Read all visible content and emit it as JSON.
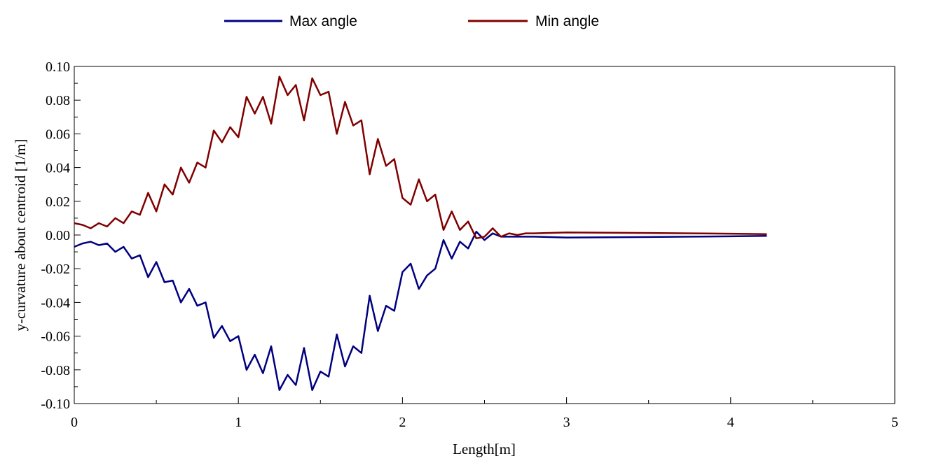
{
  "chart_data": {
    "type": "line",
    "xlabel": "Length[m]",
    "ylabel": "y-curvature about centroid [1/m]",
    "xlim": [
      0,
      5
    ],
    "ylim": [
      -0.1,
      0.1
    ],
    "x_ticks": [
      "0",
      "1",
      "2",
      "3",
      "4",
      "5"
    ],
    "y_ticks": [
      "0.10",
      "0.08",
      "0.06",
      "0.04",
      "0.02",
      "0.00",
      "-0.02",
      "-0.04",
      "-0.06",
      "-0.08",
      "-0.10"
    ],
    "grid": false,
    "legend_position": "top",
    "series": [
      {
        "name": "Max angle",
        "color": "#000080",
        "x": [
          0,
          0.05,
          0.1,
          0.15,
          0.2,
          0.25,
          0.3,
          0.35,
          0.4,
          0.45,
          0.5,
          0.55,
          0.6,
          0.65,
          0.7,
          0.75,
          0.8,
          0.85,
          0.9,
          0.95,
          1.0,
          1.05,
          1.1,
          1.15,
          1.2,
          1.25,
          1.3,
          1.35,
          1.4,
          1.45,
          1.5,
          1.55,
          1.6,
          1.65,
          1.7,
          1.75,
          1.8,
          1.85,
          1.9,
          1.95,
          2.0,
          2.05,
          2.1,
          2.15,
          2.2,
          2.25,
          2.3,
          2.35,
          2.4,
          2.45,
          2.5,
          2.55,
          2.6,
          2.65,
          2.7,
          2.75,
          2.8,
          3.0,
          3.5,
          4.0,
          4.22
        ],
        "y": [
          -0.007,
          -0.005,
          -0.004,
          -0.006,
          -0.005,
          -0.01,
          -0.007,
          -0.014,
          -0.012,
          -0.025,
          -0.016,
          -0.028,
          -0.027,
          -0.04,
          -0.032,
          -0.042,
          -0.04,
          -0.061,
          -0.054,
          -0.063,
          -0.06,
          -0.08,
          -0.071,
          -0.082,
          -0.066,
          -0.092,
          -0.083,
          -0.089,
          -0.067,
          -0.092,
          -0.081,
          -0.084,
          -0.059,
          -0.078,
          -0.066,
          -0.07,
          -0.036,
          -0.057,
          -0.042,
          -0.045,
          -0.022,
          -0.017,
          -0.032,
          -0.024,
          -0.02,
          -0.003,
          -0.014,
          -0.004,
          -0.008,
          0.002,
          -0.003,
          0.001,
          -0.001,
          -0.001,
          -0.001,
          -0.001,
          -0.001,
          -0.0015,
          -0.0012,
          -0.0008,
          -0.0005
        ]
      },
      {
        "name": "Min angle",
        "color": "#800000",
        "x": [
          0,
          0.05,
          0.1,
          0.15,
          0.2,
          0.25,
          0.3,
          0.35,
          0.4,
          0.45,
          0.5,
          0.55,
          0.6,
          0.65,
          0.7,
          0.75,
          0.8,
          0.85,
          0.9,
          0.95,
          1.0,
          1.05,
          1.1,
          1.15,
          1.2,
          1.25,
          1.3,
          1.35,
          1.4,
          1.45,
          1.5,
          1.55,
          1.6,
          1.65,
          1.7,
          1.75,
          1.8,
          1.85,
          1.9,
          1.95,
          2.0,
          2.05,
          2.1,
          2.15,
          2.2,
          2.25,
          2.3,
          2.35,
          2.4,
          2.45,
          2.5,
          2.55,
          2.6,
          2.65,
          2.7,
          2.75,
          2.8,
          3.0,
          3.5,
          4.0,
          4.22
        ],
        "y": [
          0.007,
          0.006,
          0.004,
          0.007,
          0.005,
          0.01,
          0.007,
          0.014,
          0.012,
          0.025,
          0.014,
          0.03,
          0.024,
          0.04,
          0.031,
          0.043,
          0.04,
          0.062,
          0.055,
          0.064,
          0.058,
          0.082,
          0.072,
          0.082,
          0.066,
          0.094,
          0.083,
          0.089,
          0.068,
          0.093,
          0.083,
          0.085,
          0.06,
          0.079,
          0.065,
          0.068,
          0.036,
          0.057,
          0.041,
          0.045,
          0.022,
          0.018,
          0.033,
          0.02,
          0.024,
          0.003,
          0.014,
          0.003,
          0.008,
          -0.002,
          -0.001,
          0.004,
          -0.001,
          0.001,
          0.0,
          0.001,
          0.001,
          0.0015,
          0.0012,
          0.0008,
          0.0005
        ]
      }
    ]
  }
}
